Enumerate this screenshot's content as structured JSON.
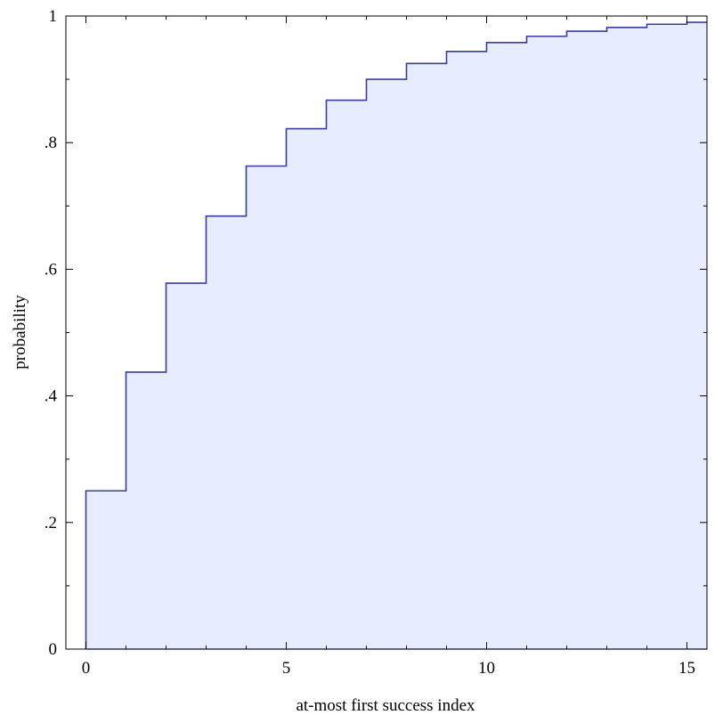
{
  "chart_data": {
    "type": "area",
    "step": "post",
    "title": "",
    "xlabel": "at-most first success index",
    "ylabel": "probability",
    "xlim": [
      -0.5,
      15.5
    ],
    "ylim": [
      0,
      1
    ],
    "x_ticks": [
      0,
      5,
      10,
      15
    ],
    "x_tick_labels": [
      "0",
      "5",
      "10",
      "15"
    ],
    "y_ticks": [
      0,
      0.2,
      0.4,
      0.6,
      0.8,
      1
    ],
    "y_tick_labels": [
      "0",
      ".2",
      ".4",
      ".6",
      ".8",
      "1"
    ],
    "grid": false,
    "legend": "none",
    "colors": {
      "line": "#3a3c9a",
      "fill": "#e8ecff"
    },
    "series": [
      {
        "x": [
          0,
          1,
          2,
          3,
          4,
          5,
          6,
          7,
          8,
          9,
          10,
          11,
          12,
          13,
          14,
          15,
          15.5
        ],
        "values": [
          0.25,
          0.4375,
          0.578,
          0.684,
          0.763,
          0.822,
          0.867,
          0.9,
          0.925,
          0.944,
          0.958,
          0.968,
          0.976,
          0.982,
          0.987,
          0.99,
          0.99
        ]
      }
    ]
  }
}
